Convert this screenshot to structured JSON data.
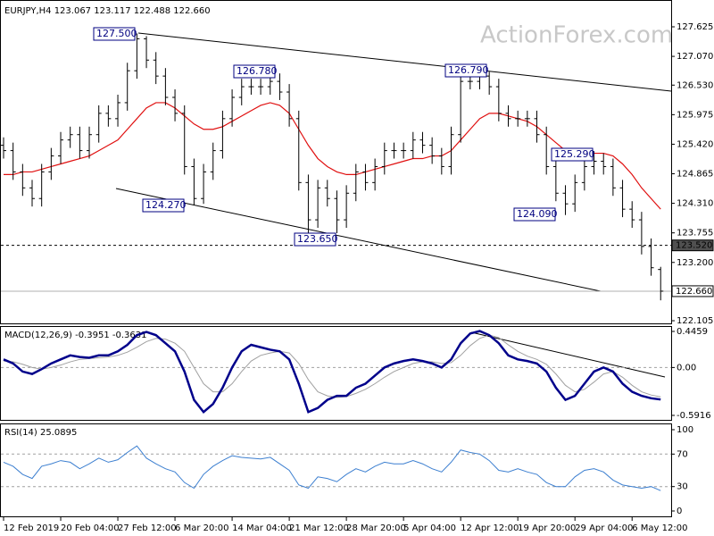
{
  "watermark": "ActionForex.com",
  "chart_data": [
    {
      "type": "ohlc",
      "title": "EURJPY,H4 123.067 123.117 122.488 122.660",
      "categories": [
        "12 Feb 2019",
        null,
        null,
        null,
        null,
        null,
        "20 Feb 04:00",
        null,
        null,
        null,
        null,
        null,
        "27 Feb 12:00",
        null,
        null,
        null,
        null,
        null,
        "6 Mar 20:00",
        null,
        null,
        null,
        null,
        null,
        "14 Mar 04:00",
        null,
        null,
        null,
        null,
        null,
        "21 Mar 12:00",
        null,
        null,
        null,
        null,
        null,
        "28 Mar 20:00",
        null,
        null,
        null,
        null,
        null,
        "5 Apr 04:00",
        null,
        null,
        null,
        null,
        null,
        "12 Apr 12:00",
        null,
        null,
        null,
        null,
        null,
        "19 Apr 20:00",
        null,
        null,
        null,
        null,
        null,
        "29 Apr 04:00",
        null,
        null,
        null,
        null,
        null,
        "6 May 12:00",
        null,
        null,
        null
      ],
      "open": [
        125.4,
        125.3,
        124.9,
        124.6,
        124.4,
        124.9,
        125.2,
        125.5,
        125.6,
        125.3,
        125.6,
        126.0,
        125.9,
        126.2,
        126.8,
        127.4,
        127.0,
        126.7,
        126.3,
        126.0,
        125.0,
        124.4,
        124.9,
        125.3,
        125.9,
        126.3,
        126.5,
        126.5,
        126.5,
        126.6,
        126.4,
        125.9,
        124.7,
        124.0,
        124.6,
        124.4,
        124.0,
        124.5,
        124.9,
        124.7,
        125.0,
        125.3,
        125.3,
        125.3,
        125.5,
        125.4,
        125.2,
        125.0,
        125.6,
        126.6,
        126.6,
        126.7,
        126.5,
        126.0,
        125.9,
        125.9,
        125.9,
        125.6,
        125.0,
        124.5,
        124.3,
        124.7,
        125.0,
        125.1,
        125.0,
        124.6,
        124.2,
        124.0,
        123.5,
        123.067
      ],
      "high": [
        125.55,
        125.45,
        125.05,
        124.75,
        125.05,
        125.35,
        125.65,
        125.75,
        125.75,
        125.75,
        126.15,
        126.15,
        126.35,
        126.95,
        127.5,
        127.45,
        127.15,
        126.85,
        126.45,
        126.15,
        125.15,
        125.05,
        125.45,
        126.05,
        126.45,
        126.65,
        126.65,
        126.65,
        126.78,
        126.75,
        126.55,
        126.05,
        124.85,
        124.75,
        124.75,
        124.55,
        124.65,
        125.05,
        125.05,
        125.15,
        125.45,
        125.45,
        125.45,
        125.65,
        125.65,
        125.55,
        125.35,
        125.75,
        126.75,
        126.75,
        126.79,
        126.78,
        126.65,
        126.15,
        126.05,
        126.05,
        126.05,
        125.75,
        125.15,
        124.65,
        124.85,
        125.15,
        125.29,
        125.25,
        125.15,
        124.75,
        124.35,
        124.15,
        123.65,
        123.117
      ],
      "low": [
        125.15,
        124.75,
        124.45,
        124.25,
        124.25,
        124.75,
        125.05,
        125.35,
        125.15,
        125.15,
        125.45,
        125.75,
        125.75,
        126.05,
        126.65,
        126.85,
        126.55,
        126.15,
        125.85,
        124.85,
        124.27,
        124.3,
        124.75,
        125.15,
        125.75,
        126.15,
        126.35,
        126.35,
        126.35,
        126.25,
        125.75,
        124.55,
        123.65,
        123.85,
        124.25,
        123.75,
        123.85,
        124.35,
        124.55,
        124.55,
        124.85,
        125.15,
        125.15,
        125.15,
        125.25,
        125.05,
        124.85,
        124.85,
        125.45,
        126.45,
        126.45,
        126.35,
        125.85,
        125.75,
        125.75,
        125.75,
        125.45,
        124.85,
        124.35,
        124.09,
        124.15,
        124.55,
        124.85,
        124.85,
        124.45,
        124.05,
        123.85,
        123.35,
        122.95,
        122.488
      ],
      "close": [
        125.3,
        124.9,
        124.6,
        124.4,
        124.9,
        125.2,
        125.5,
        125.6,
        125.3,
        125.6,
        126.0,
        125.9,
        126.2,
        126.8,
        127.4,
        127.0,
        126.7,
        126.3,
        126.0,
        125.0,
        124.4,
        124.9,
        125.3,
        125.9,
        126.3,
        126.5,
        126.5,
        126.5,
        126.6,
        126.4,
        125.9,
        124.7,
        124.0,
        124.6,
        124.4,
        124.0,
        124.5,
        124.9,
        124.7,
        125.0,
        125.3,
        125.3,
        125.3,
        125.5,
        125.4,
        125.2,
        125.0,
        125.6,
        126.6,
        126.6,
        126.7,
        126.5,
        126.0,
        125.9,
        125.9,
        125.9,
        125.6,
        125.0,
        124.5,
        124.3,
        124.7,
        125.0,
        125.1,
        125.0,
        124.6,
        124.2,
        124.0,
        123.5,
        123.1,
        122.66
      ],
      "bar_color": "#000000",
      "ma": {
        "color": "#e01010",
        "values": [
          124.85,
          124.85,
          124.9,
          124.9,
          124.95,
          125.0,
          125.05,
          125.1,
          125.15,
          125.2,
          125.3,
          125.4,
          125.5,
          125.7,
          125.9,
          126.1,
          126.2,
          126.2,
          126.1,
          125.95,
          125.8,
          125.7,
          125.7,
          125.75,
          125.85,
          125.95,
          126.05,
          126.15,
          126.2,
          126.15,
          126.0,
          125.7,
          125.4,
          125.15,
          125.0,
          124.9,
          124.85,
          124.85,
          124.9,
          124.95,
          125.0,
          125.05,
          125.1,
          125.15,
          125.15,
          125.2,
          125.2,
          125.3,
          125.5,
          125.7,
          125.9,
          126.0,
          126.0,
          125.95,
          125.9,
          125.85,
          125.75,
          125.6,
          125.45,
          125.3,
          125.2,
          125.2,
          125.25,
          125.25,
          125.2,
          125.05,
          124.85,
          124.6,
          124.4,
          124.2
        ]
      },
      "ylim": [
        122.055,
        128.095
      ],
      "yticks": [
        127.625,
        {
          "value": 127.07,
          "label": "127.070"
        },
        {
          "value": 126.53,
          "label": "126.530"
        },
        125.975,
        {
          "value": 125.42,
          "label": "125.420"
        },
        124.865,
        {
          "value": 124.31,
          "label": "124.310"
        },
        123.755,
        {
          "value": 123.2,
          "label": "123.200"
        },
        122.105
      ],
      "price_levels": [
        {
          "value": 123.52,
          "label": "123.520",
          "style": "dashed"
        },
        {
          "value": 122.66,
          "label": "122.660",
          "style": "solid"
        }
      ],
      "annotations": [
        {
          "value": 127.5,
          "label": "127.500"
        },
        {
          "value": 126.78,
          "label": "126.780"
        },
        {
          "value": 124.27,
          "label": "124.270"
        },
        {
          "value": 123.65,
          "label": "123.650"
        },
        {
          "value": 126.79,
          "label": "126.790"
        },
        {
          "value": 125.29,
          "label": "125.290"
        },
        {
          "value": 124.09,
          "label": "124.090"
        }
      ]
    },
    {
      "type": "macd",
      "title": "MACD(12,26,9) -0.3951 -0.3631",
      "series": [
        {
          "name": "MACD",
          "color": "#00008b",
          "values": [
            0.1,
            0.05,
            -0.05,
            -0.08,
            -0.02,
            0.05,
            0.1,
            0.15,
            0.13,
            0.12,
            0.15,
            0.15,
            0.2,
            0.28,
            0.4,
            0.44,
            0.4,
            0.3,
            0.2,
            -0.05,
            -0.4,
            -0.55,
            -0.45,
            -0.25,
            0.0,
            0.2,
            0.28,
            0.25,
            0.22,
            0.2,
            0.1,
            -0.2,
            -0.55,
            -0.5,
            -0.4,
            -0.35,
            -0.35,
            -0.25,
            -0.2,
            -0.1,
            0.0,
            0.05,
            0.08,
            0.1,
            0.08,
            0.05,
            0.0,
            0.1,
            0.3,
            0.42,
            0.45,
            0.4,
            0.3,
            0.15,
            0.1,
            0.08,
            0.05,
            -0.05,
            -0.25,
            -0.4,
            -0.35,
            -0.2,
            -0.05,
            0.0,
            -0.05,
            -0.2,
            -0.3,
            -0.35,
            -0.38,
            -0.3951
          ]
        },
        {
          "name": "Signal",
          "color": "#a0a0a0",
          "values": [
            0.08,
            0.07,
            0.04,
            0.0,
            -0.02,
            0.0,
            0.03,
            0.07,
            0.1,
            0.11,
            0.12,
            0.13,
            0.15,
            0.19,
            0.25,
            0.32,
            0.36,
            0.35,
            0.3,
            0.2,
            0.0,
            -0.2,
            -0.3,
            -0.3,
            -0.2,
            -0.05,
            0.08,
            0.15,
            0.18,
            0.2,
            0.18,
            0.05,
            -0.15,
            -0.3,
            -0.35,
            -0.37,
            -0.36,
            -0.32,
            -0.27,
            -0.2,
            -0.12,
            -0.05,
            0.0,
            0.05,
            0.07,
            0.07,
            0.05,
            0.06,
            0.15,
            0.27,
            0.36,
            0.4,
            0.37,
            0.28,
            0.2,
            0.14,
            0.1,
            0.04,
            -0.08,
            -0.22,
            -0.3,
            -0.27,
            -0.18,
            -0.08,
            -0.05,
            -0.12,
            -0.22,
            -0.3,
            -0.34,
            -0.3631
          ]
        }
      ],
      "ylim": [
        -0.658,
        0.512
      ],
      "yticks": [
        0.4459,
        {
          "value": 0,
          "label": "0.00"
        },
        -0.5916
      ]
    },
    {
      "type": "rsi",
      "title": "RSI(14) 25.0895",
      "series": [
        {
          "name": "RSI",
          "color": "#3c7fd0",
          "values": [
            60,
            55,
            45,
            40,
            55,
            58,
            62,
            60,
            52,
            58,
            65,
            60,
            63,
            72,
            80,
            65,
            58,
            52,
            48,
            35,
            28,
            45,
            55,
            62,
            68,
            66,
            65,
            64,
            66,
            58,
            50,
            32,
            28,
            42,
            40,
            36,
            45,
            52,
            48,
            55,
            60,
            58,
            58,
            62,
            58,
            52,
            48,
            60,
            75,
            72,
            70,
            62,
            50,
            48,
            52,
            48,
            45,
            35,
            30,
            30,
            42,
            50,
            52,
            48,
            38,
            32,
            30,
            28,
            30,
            25.0895
          ]
        }
      ],
      "ylim": [
        -6.6,
        106.6
      ],
      "yticks": [
        100,
        70,
        30,
        0
      ]
    }
  ]
}
